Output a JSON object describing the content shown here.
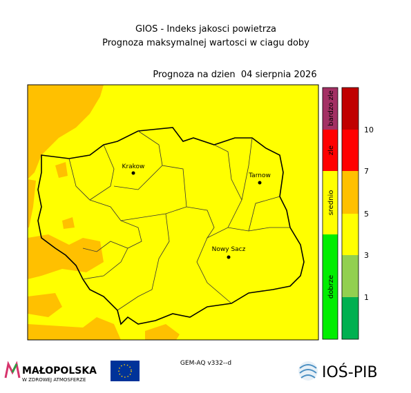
{
  "header": {
    "title": "GIOS - Indeks jakosci powietrza",
    "subtitle": "Prognoza maksymalnej wartosci w ciagu doby",
    "date_label": "Prognoza na dzien  04 sierpnia 2026"
  },
  "cities": [
    {
      "label": "Krakow"
    },
    {
      "label": "Tarnow"
    },
    {
      "label": "Nowy Sacz"
    }
  ],
  "categories": [
    "bardzo zle",
    "zle",
    "srednio",
    "dobrze"
  ],
  "scale": [
    10,
    7,
    5,
    3,
    1
  ],
  "footer": {
    "model": "GEM-AQ v332--d",
    "logo_left": "MAŁOPOLSKA",
    "logo_left_sub": "W ZDROWEJ ATMOSFERZE",
    "logo_right": "IOŚ-PIB"
  }
}
